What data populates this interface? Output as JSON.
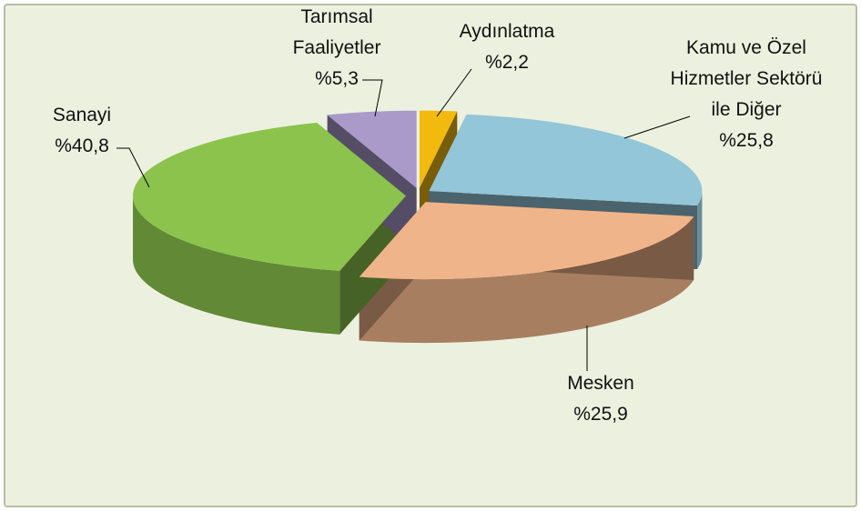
{
  "chart_data": {
    "type": "pie",
    "categories": [
      "Aydınlatma",
      "Kamu ve Özel Hizmetler Sektörü ile Diğer",
      "Mesken",
      "Sanayi",
      "Tarımsal Faaliyetler"
    ],
    "values": [
      2.2,
      25.8,
      25.9,
      40.8,
      5.3
    ],
    "value_labels": [
      "%2,2",
      "%25,8",
      "%25,9",
      "%40,8",
      "%5,3"
    ],
    "colors": [
      "#f2b90f",
      "#93c6d8",
      "#f0b48a",
      "#8cc34c",
      "#a99ac9"
    ]
  }
}
